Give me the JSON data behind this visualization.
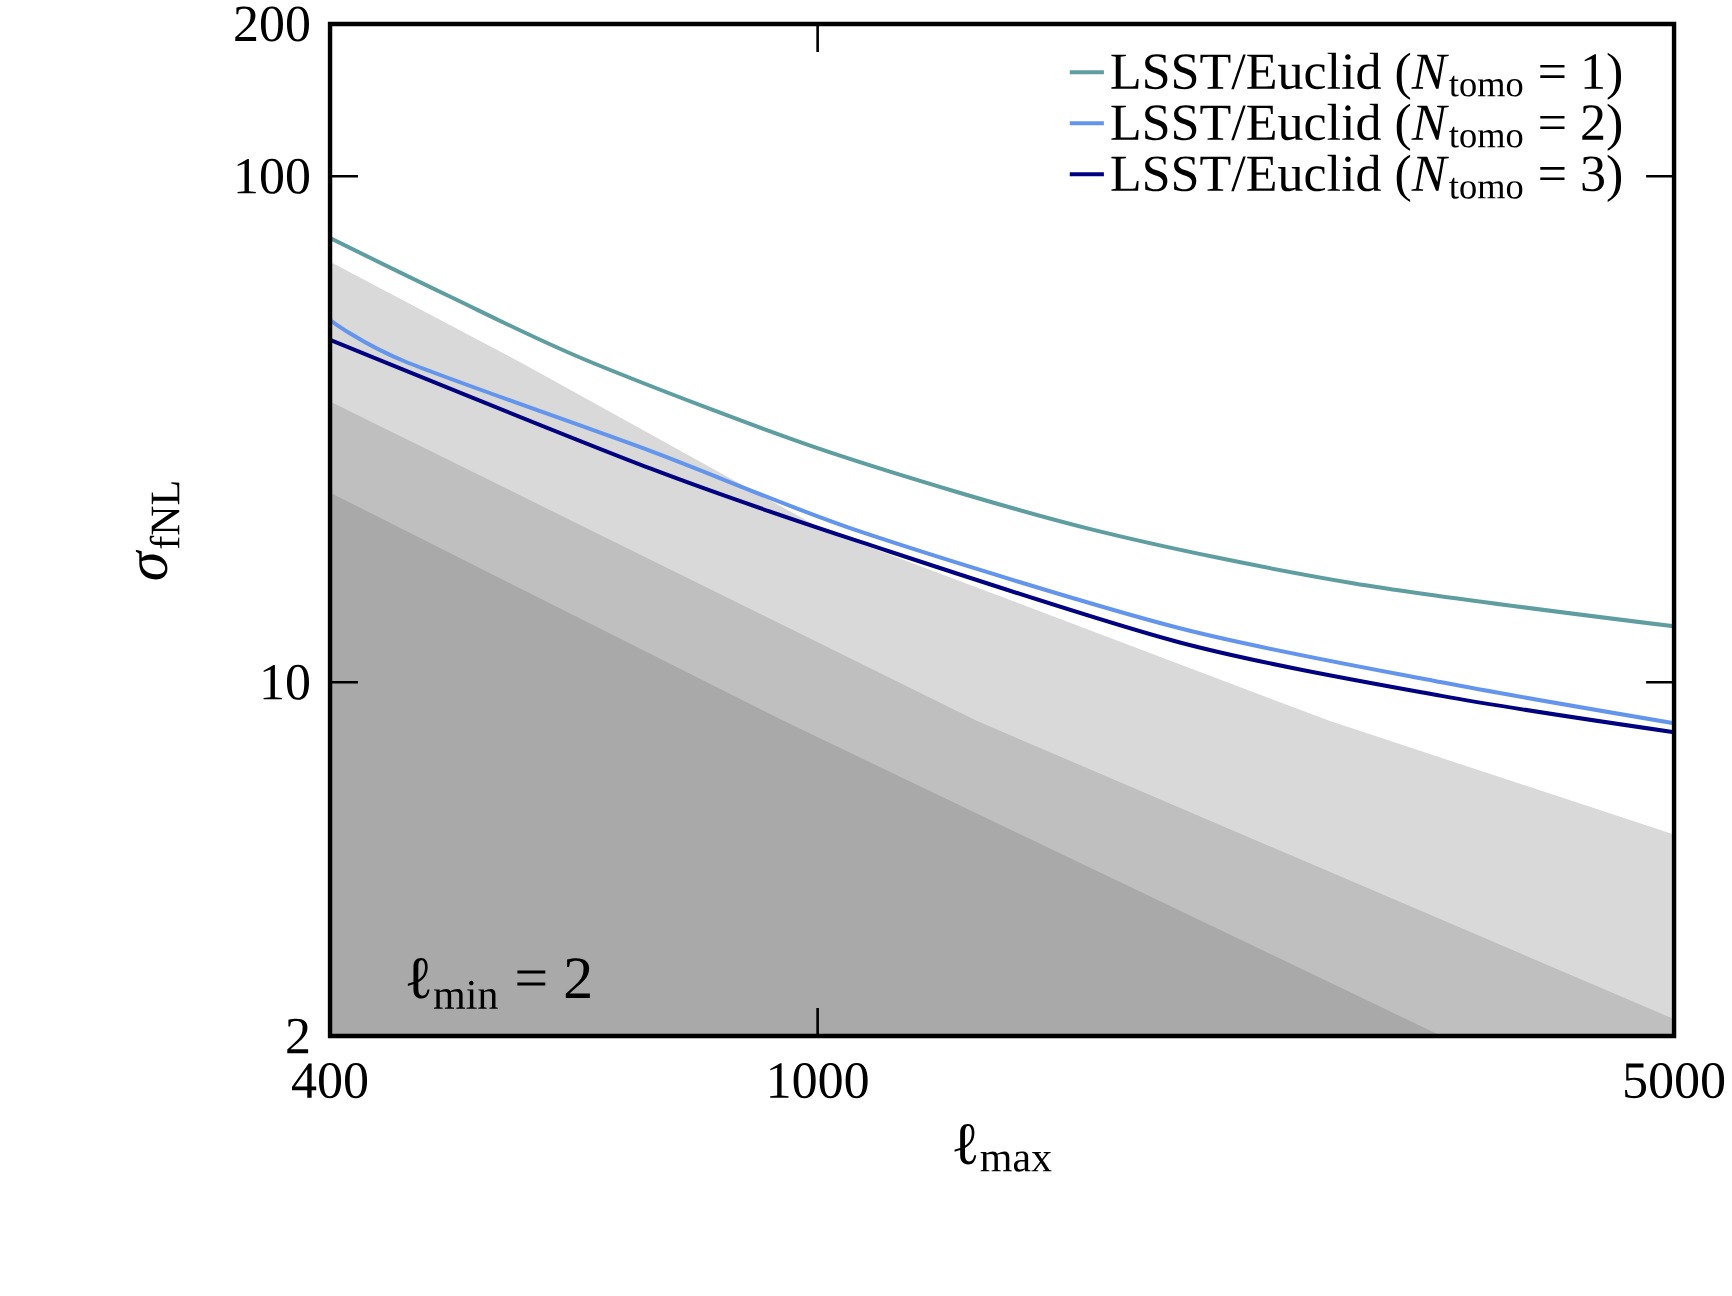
{
  "chart_data": {
    "type": "line",
    "xlabel": "ℓ$_{max}$",
    "ylabel": "*σ*$_{fNL}$",
    "log": "xy",
    "legend": "top right",
    "xlim": [
      400,
      5000
    ],
    "ylim": [
      2,
      200
    ],
    "xticks": [
      400,
      1000,
      5000
    ],
    "yticks": [
      2,
      10,
      100,
      200
    ],
    "annotations": [
      "ℓ$_{min}$ = 2"
    ],
    "series": [
      {
        "type": "area",
        "color": "#d9d9d9",
        "x": [
          400,
          571,
          1008,
          2612,
          5000
        ],
        "values": [
          67.8,
          43,
          20.1,
          8.4,
          5.0
        ]
      },
      {
        "type": "area",
        "color": "#bfbfbf",
        "x": [
          400,
          1347,
          5000
        ],
        "values": [
          35.9,
          8.4,
          2.16
        ]
      },
      {
        "type": "area",
        "color": "#a9a9a9",
        "x": [
          400,
          937,
          3230
        ],
        "values": [
          23.7,
          8.4,
          2
        ]
      },
      {
        "name": "LSST/Euclid (*N*$_{tomo}$ = 1)",
        "color": "#5f9ea0",
        "x": [
          400,
          500,
          652,
          1018,
          1667,
          2735,
          5000
        ],
        "values": [
          75.5,
          58,
          43,
          28.6,
          20.1,
          15.7,
          12.9
        ]
      },
      {
        "name": "LSST/Euclid (*N*$_{tomo}$ = 2)",
        "color": "#6495ed",
        "x": [
          400,
          461,
          732,
          1087,
          1972,
          3230,
          5000
        ],
        "values": [
          52,
          43,
          28.6,
          19.8,
          12.8,
          10,
          8.3
        ]
      },
      {
        "name": "LSST/Euclid (*N*$_{tomo}$ = 3)",
        "color": "#000080",
        "x": [
          400,
          732,
          1087,
          1972,
          3230,
          5000
        ],
        "values": [
          47.5,
          26.4,
          18.9,
          12.0,
          9.4,
          7.97
        ]
      }
    ]
  }
}
